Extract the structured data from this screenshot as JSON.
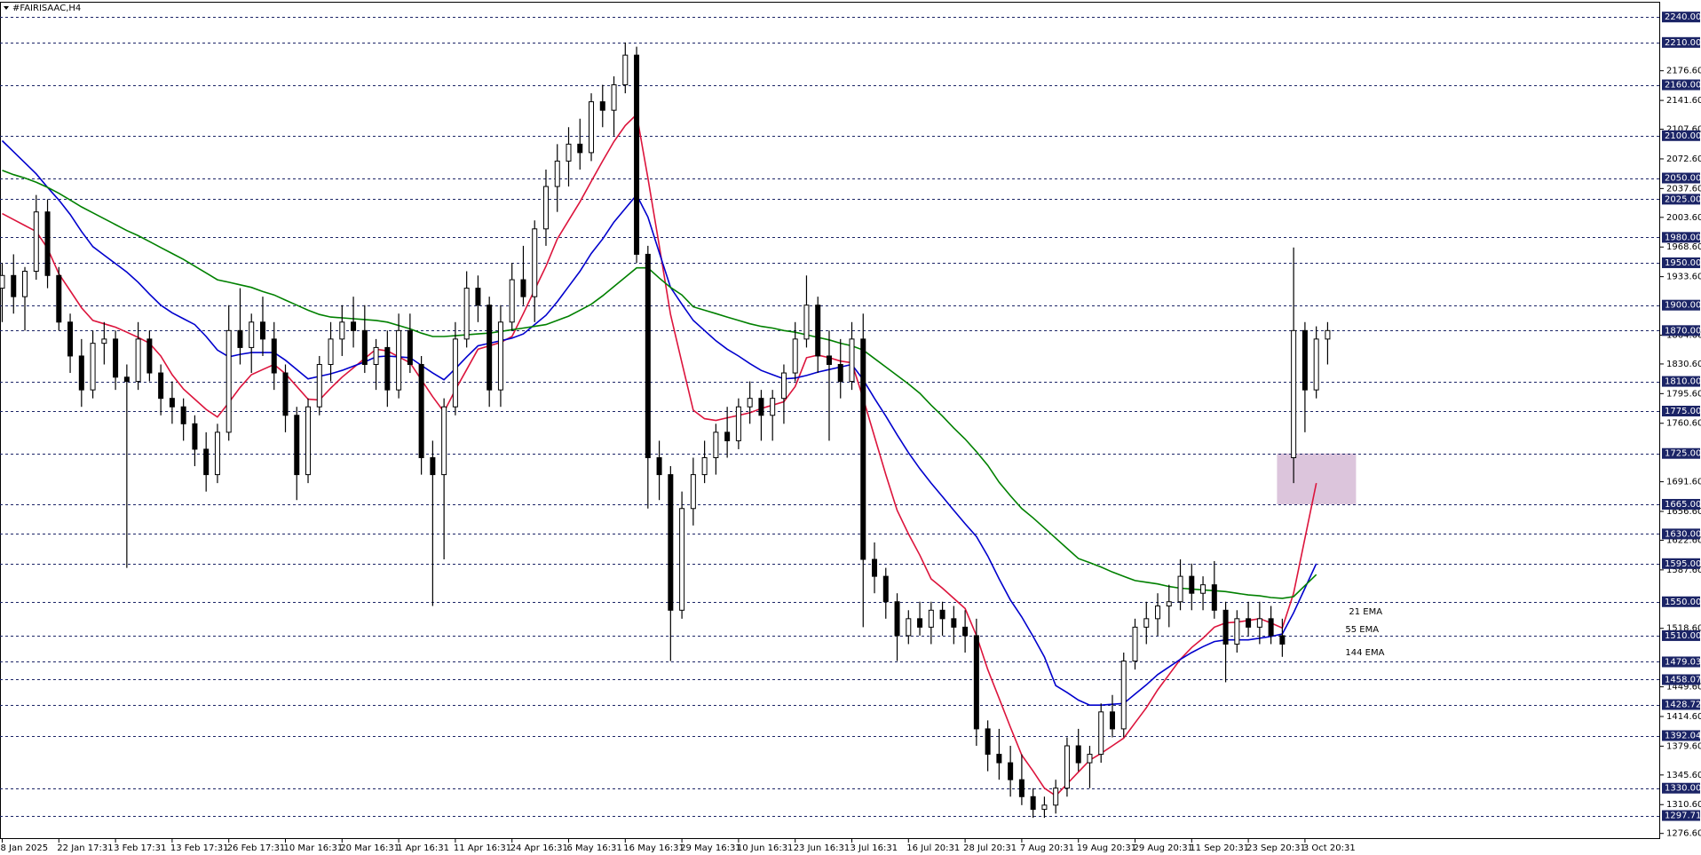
{
  "chart_data": {
    "type": "candlestick",
    "title": "#FAIRISAAC,H4",
    "categories": [
      "8 Jan 2025",
      null,
      null,
      null,
      null,
      "22 Jan 17:31",
      null,
      null,
      null,
      null,
      "3 Feb 17:31",
      null,
      null,
      null,
      null,
      "13 Feb 17:31",
      null,
      null,
      null,
      null,
      "26 Feb 17:31",
      null,
      null,
      null,
      null,
      "10 Mar 16:31",
      null,
      null,
      null,
      null,
      "20 Mar 16:31",
      null,
      null,
      null,
      null,
      "1 Apr 16:31",
      null,
      null,
      null,
      null,
      "11 Apr 16:31",
      null,
      null,
      null,
      null,
      "24 Apr 16:31",
      null,
      null,
      null,
      null,
      "6 May 16:31",
      null,
      null,
      null,
      null,
      "16 May 16:31",
      null,
      null,
      null,
      null,
      "29 May 16:31",
      null,
      null,
      null,
      null,
      "10 Jun 16:31",
      null,
      null,
      null,
      null,
      "23 Jun 16:31",
      null,
      null,
      null,
      null,
      "3 Jul 16:31",
      null,
      null,
      null,
      null,
      "16 Jul 20:31",
      null,
      null,
      null,
      null,
      "28 Jul 20:31",
      null,
      null,
      null,
      null,
      "7 Aug 20:31",
      null,
      null,
      null,
      null,
      "19 Aug 20:31",
      null,
      null,
      null,
      null,
      "29 Aug 20:31",
      null,
      null,
      null,
      null,
      "11 Sep 20:31",
      null,
      null,
      null,
      null,
      "23 Sep 20:31",
      null,
      null,
      null,
      null,
      "3 Oct 20:31",
      null,
      null
    ],
    "open": [
      1920,
      1935,
      1910,
      1940,
      2010,
      1935,
      1880,
      1840,
      1800,
      1855,
      1860,
      1815,
      1810,
      1860,
      1820,
      1790,
      1780,
      1760,
      1730,
      1700,
      1750,
      1870,
      1850,
      1880,
      1860,
      1820,
      1770,
      1700,
      1780,
      1830,
      1860,
      1880,
      1870,
      1830,
      1850,
      1800,
      1870,
      1830,
      1720,
      1700,
      1780,
      1860,
      1920,
      1900,
      1800,
      1880,
      1930,
      1910,
      1990,
      2040,
      2070,
      2090,
      2080,
      2140,
      2130,
      2160,
      2195,
      1960,
      1720,
      1700,
      1540,
      1660,
      1700,
      1720,
      1750,
      1740,
      1780,
      1790,
      1770,
      1790,
      1820,
      1860,
      1900,
      1840,
      1830,
      1810,
      1860,
      1600,
      1580,
      1550,
      1510,
      1530,
      1520,
      1540,
      1530,
      1520,
      1510,
      1400,
      1370,
      1360,
      1340,
      1320,
      1305,
      1310,
      1330,
      1380,
      1360,
      1370,
      1420,
      1400,
      1480,
      1520,
      1530,
      1545,
      1550,
      1580,
      1560,
      1570,
      1540,
      1500,
      1530,
      1520,
      1530,
      1510,
      1720,
      1870,
      1800,
      1860
    ],
    "high": [
      1950,
      1960,
      1945,
      2030,
      2025,
      1945,
      1890,
      1860,
      1870,
      1880,
      1870,
      1830,
      1880,
      1870,
      1830,
      1810,
      1790,
      1770,
      1750,
      1760,
      1900,
      1920,
      1890,
      1910,
      1880,
      1830,
      1780,
      1790,
      1840,
      1880,
      1900,
      1910,
      1900,
      1860,
      1870,
      1890,
      1890,
      1840,
      1740,
      1790,
      1880,
      1940,
      1935,
      1910,
      1900,
      1950,
      1970,
      2000,
      2060,
      2090,
      2110,
      2120,
      2150,
      2160,
      2170,
      2210,
      2205,
      1970,
      1740,
      1710,
      1680,
      1720,
      1740,
      1760,
      1780,
      1790,
      1810,
      1800,
      1800,
      1830,
      1880,
      1935,
      1910,
      1870,
      1860,
      1880,
      1890,
      1620,
      1590,
      1560,
      1540,
      1550,
      1550,
      1550,
      1545,
      1540,
      1530,
      1410,
      1400,
      1380,
      1370,
      1330,
      1320,
      1340,
      1390,
      1400,
      1380,
      1430,
      1440,
      1490,
      1530,
      1550,
      1560,
      1570,
      1600,
      1595,
      1580,
      1598,
      1550,
      1540,
      1550,
      1550,
      1545,
      1530,
      1968,
      1880,
      1875,
      1880
    ],
    "low": [
      1880,
      1890,
      1870,
      1930,
      1920,
      1870,
      1820,
      1780,
      1790,
      1830,
      1800,
      1590,
      1800,
      1810,
      1770,
      1760,
      1740,
      1710,
      1680,
      1690,
      1740,
      1830,
      1820,
      1840,
      1800,
      1750,
      1670,
      1690,
      1770,
      1810,
      1840,
      1850,
      1820,
      1800,
      1780,
      1790,
      1820,
      1700,
      1545,
      1600,
      1770,
      1850,
      1880,
      1780,
      1780,
      1870,
      1900,
      1880,
      1970,
      2010,
      2040,
      2060,
      2070,
      2110,
      2100,
      2150,
      1950,
      1660,
      1670,
      1480,
      1530,
      1640,
      1690,
      1700,
      1720,
      1730,
      1760,
      1740,
      1740,
      1760,
      1810,
      1850,
      1820,
      1740,
      1790,
      1800,
      1520,
      1560,
      1530,
      1480,
      1500,
      1510,
      1500,
      1510,
      1500,
      1490,
      1380,
      1350,
      1340,
      1320,
      1310,
      1295,
      1295,
      1300,
      1320,
      1350,
      1330,
      1360,
      1390,
      1390,
      1470,
      1500,
      1510,
      1520,
      1540,
      1540,
      1540,
      1530,
      1455,
      1490,
      1510,
      1500,
      1500,
      1485,
      1690,
      1750,
      1790,
      1830
    ],
    "close": [
      1935,
      1910,
      1940,
      2010,
      1935,
      1880,
      1840,
      1800,
      1855,
      1860,
      1815,
      1810,
      1860,
      1820,
      1790,
      1780,
      1760,
      1730,
      1700,
      1750,
      1870,
      1850,
      1880,
      1860,
      1820,
      1770,
      1700,
      1780,
      1830,
      1860,
      1880,
      1870,
      1830,
      1850,
      1800,
      1870,
      1830,
      1720,
      1700,
      1780,
      1860,
      1920,
      1900,
      1800,
      1880,
      1930,
      1910,
      1990,
      2040,
      2070,
      2090,
      2080,
      2140,
      2130,
      2160,
      2195,
      1960,
      1720,
      1700,
      1540,
      1660,
      1700,
      1720,
      1750,
      1740,
      1780,
      1790,
      1770,
      1790,
      1820,
      1860,
      1900,
      1840,
      1830,
      1810,
      1860,
      1600,
      1580,
      1550,
      1510,
      1530,
      1520,
      1540,
      1530,
      1520,
      1510,
      1400,
      1370,
      1360,
      1340,
      1320,
      1305,
      1310,
      1330,
      1380,
      1360,
      1370,
      1420,
      1400,
      1480,
      1520,
      1530,
      1545,
      1550,
      1580,
      1560,
      1570,
      1540,
      1500,
      1530,
      1520,
      1530,
      1510,
      1500,
      1870,
      1800,
      1860,
      1870
    ],
    "up_color": "#ffffff",
    "down_color": "#000000",
    "wick_color": "#000000",
    "series": [
      {
        "name": "21 EMA",
        "color": "#dc143c",
        "values": [
          2008,
          2001,
          1994,
          1987,
          1967,
          1937,
          1917,
          1897,
          1882,
          1878,
          1874,
          1868,
          1862,
          1855,
          1840,
          1818,
          1801,
          1789,
          1777,
          1768,
          1785,
          1803,
          1818,
          1824,
          1830,
          1819,
          1804,
          1789,
          1788,
          1802,
          1815,
          1826,
          1837,
          1848,
          1846,
          1839,
          1832,
          1812,
          1792,
          1774,
          1800,
          1824,
          1848,
          1852,
          1856,
          1863,
          1890,
          1918,
          1946,
          1978,
          2000,
          2022,
          2046,
          2070,
          2093,
          2112,
          2125,
          2050,
          1970,
          1889,
          1832,
          1776,
          1766,
          1764,
          1767,
          1770,
          1773,
          1778,
          1782,
          1786,
          1804,
          1838,
          1841,
          1838,
          1834,
          1832,
          1790,
          1745,
          1700,
          1658,
          1630,
          1605,
          1577,
          1566,
          1554,
          1542,
          1510,
          1470,
          1436,
          1402,
          1369,
          1350,
          1330,
          1321,
          1335,
          1349,
          1363,
          1371,
          1380,
          1389,
          1407,
          1425,
          1446,
          1464,
          1482,
          1496,
          1507,
          1520,
          1525,
          1526,
          1528,
          1530,
          1525,
          1519,
          1560,
          1625,
          1690,
          null
        ]
      },
      {
        "name": "55 EMA",
        "color": "#0000cd",
        "values": [
          2094,
          2081,
          2068,
          2055,
          2039,
          2024,
          2007,
          1987,
          1969,
          1959,
          1949,
          1939,
          1927,
          1913,
          1900,
          1891,
          1884,
          1877,
          1863,
          1847,
          1839,
          1842,
          1844,
          1844,
          1844,
          1835,
          1824,
          1813,
          1816,
          1819,
          1823,
          1828,
          1833,
          1839,
          1840,
          1839,
          1838,
          1829,
          1820,
          1812,
          1825,
          1839,
          1852,
          1855,
          1858,
          1861,
          1866,
          1877,
          1888,
          1904,
          1922,
          1940,
          1961,
          1978,
          1998,
          2014,
          2030,
          2004,
          1962,
          1921,
          1901,
          1882,
          1870,
          1858,
          1848,
          1840,
          1831,
          1823,
          1818,
          1813,
          1814,
          1817,
          1821,
          1824,
          1827,
          1830,
          1812,
          1790,
          1769,
          1747,
          1726,
          1707,
          1690,
          1674,
          1658,
          1642,
          1627,
          1604,
          1577,
          1552,
          1532,
          1509,
          1485,
          1451,
          1443,
          1434,
          1428,
          1428,
          1429,
          1430,
          1441,
          1452,
          1464,
          1473,
          1482,
          1490,
          1497,
          1503,
          1505,
          1505,
          1505,
          1507,
          1509,
          1512,
          1537,
          1566,
          1595,
          null
        ]
      },
      {
        "name": "144 EMA",
        "color": "#008000",
        "values": [
          2059,
          2054,
          2050,
          2045,
          2039,
          2032,
          2024,
          2016,
          2009,
          2002,
          1995,
          1988,
          1982,
          1975,
          1968,
          1961,
          1954,
          1946,
          1938,
          1930,
          1927,
          1924,
          1921,
          1916,
          1912,
          1906,
          1900,
          1894,
          1889,
          1886,
          1885,
          1884,
          1883,
          1882,
          1880,
          1876,
          1872,
          1867,
          1863,
          1863,
          1864,
          1865,
          1866,
          1867,
          1869,
          1871,
          1873,
          1875,
          1877,
          1882,
          1887,
          1894,
          1901,
          1911,
          1922,
          1933,
          1944,
          1944,
          1932,
          1921,
          1912,
          1898,
          1894,
          1890,
          1886,
          1882,
          1878,
          1875,
          1873,
          1870,
          1868,
          1865,
          1862,
          1859,
          1855,
          1852,
          1847,
          1837,
          1827,
          1817,
          1807,
          1796,
          1782,
          1769,
          1755,
          1742,
          1727,
          1711,
          1691,
          1675,
          1660,
          1649,
          1637,
          1625,
          1613,
          1601,
          1596,
          1591,
          1585,
          1580,
          1575,
          1573,
          1571,
          1568,
          1566,
          1565,
          1564,
          1563,
          1562,
          1560,
          1558,
          1557,
          1555,
          1554,
          1556,
          1569,
          1582,
          null
        ]
      }
    ],
    "ylim": [
      1270,
      2258
    ],
    "yticks": [
      {
        "value": 2176.6,
        "label": "2176.60"
      },
      {
        "value": 2141.6,
        "label": "2141.60"
      },
      {
        "value": 2107.6,
        "label": "2107.60"
      },
      {
        "value": 2072.6,
        "label": "2072.60"
      },
      {
        "value": 2037.6,
        "label": "2037.60"
      },
      {
        "value": 2003.6,
        "label": "2003.60"
      },
      {
        "value": 1968.6,
        "label": "1968.60"
      },
      {
        "value": 1933.6,
        "label": "1933.60"
      },
      {
        "value": 1864.6,
        "label": "1864.60"
      },
      {
        "value": 1830.6,
        "label": "1830.60"
      },
      {
        "value": 1795.6,
        "label": "1795.60"
      },
      {
        "value": 1760.6,
        "label": "1760.60"
      },
      {
        "value": 1691.6,
        "label": "1691.60"
      },
      {
        "value": 1656.6,
        "label": "1656.60"
      },
      {
        "value": 1622.6,
        "label": "1622.60"
      },
      {
        "value": 1587.6,
        "label": "1587.60"
      },
      {
        "value": 1518.6,
        "label": "1518.60"
      },
      {
        "value": 1449.6,
        "label": "1449.60"
      },
      {
        "value": 1414.6,
        "label": "1414.60"
      },
      {
        "value": 1379.6,
        "label": "1379.60"
      },
      {
        "value": 1345.6,
        "label": "1345.60"
      },
      {
        "value": 1310.6,
        "label": "1310.60"
      },
      {
        "value": 1276.6,
        "label": "1276.60"
      }
    ],
    "levels": [
      {
        "value": 2240,
        "label": "2240.00"
      },
      {
        "value": 2210,
        "label": "2210.00"
      },
      {
        "value": 2160,
        "label": "2160.00"
      },
      {
        "value": 2100,
        "label": "2100.00"
      },
      {
        "value": 2050,
        "label": "2050.00"
      },
      {
        "value": 2025,
        "label": "2025.00"
      },
      {
        "value": 1980,
        "label": "1980.00"
      },
      {
        "value": 1950,
        "label": "1950.00"
      },
      {
        "value": 1900,
        "label": "1900.00"
      },
      {
        "value": 1870,
        "label": "1870.00"
      },
      {
        "value": 1810,
        "label": "1810.00"
      },
      {
        "value": 1775,
        "label": "1775.00"
      },
      {
        "value": 1725,
        "label": "1725.00"
      },
      {
        "value": 1665,
        "label": "1665.00"
      },
      {
        "value": 1630,
        "label": "1630.00"
      },
      {
        "value": 1595,
        "label": "1595.00"
      },
      {
        "value": 1550,
        "label": "1550.00"
      },
      {
        "value": 1510,
        "label": "1510.00"
      },
      1479.03,
      1458.07,
      1428.72,
      1392.04,
      {
        "value": 1330,
        "label": "1330.00"
      },
      1297.71
    ],
    "level_color": "#1b2466",
    "zone": {
      "top": 1725,
      "bottom": 1665,
      "color": "#d8bfd8"
    },
    "grid": false
  }
}
